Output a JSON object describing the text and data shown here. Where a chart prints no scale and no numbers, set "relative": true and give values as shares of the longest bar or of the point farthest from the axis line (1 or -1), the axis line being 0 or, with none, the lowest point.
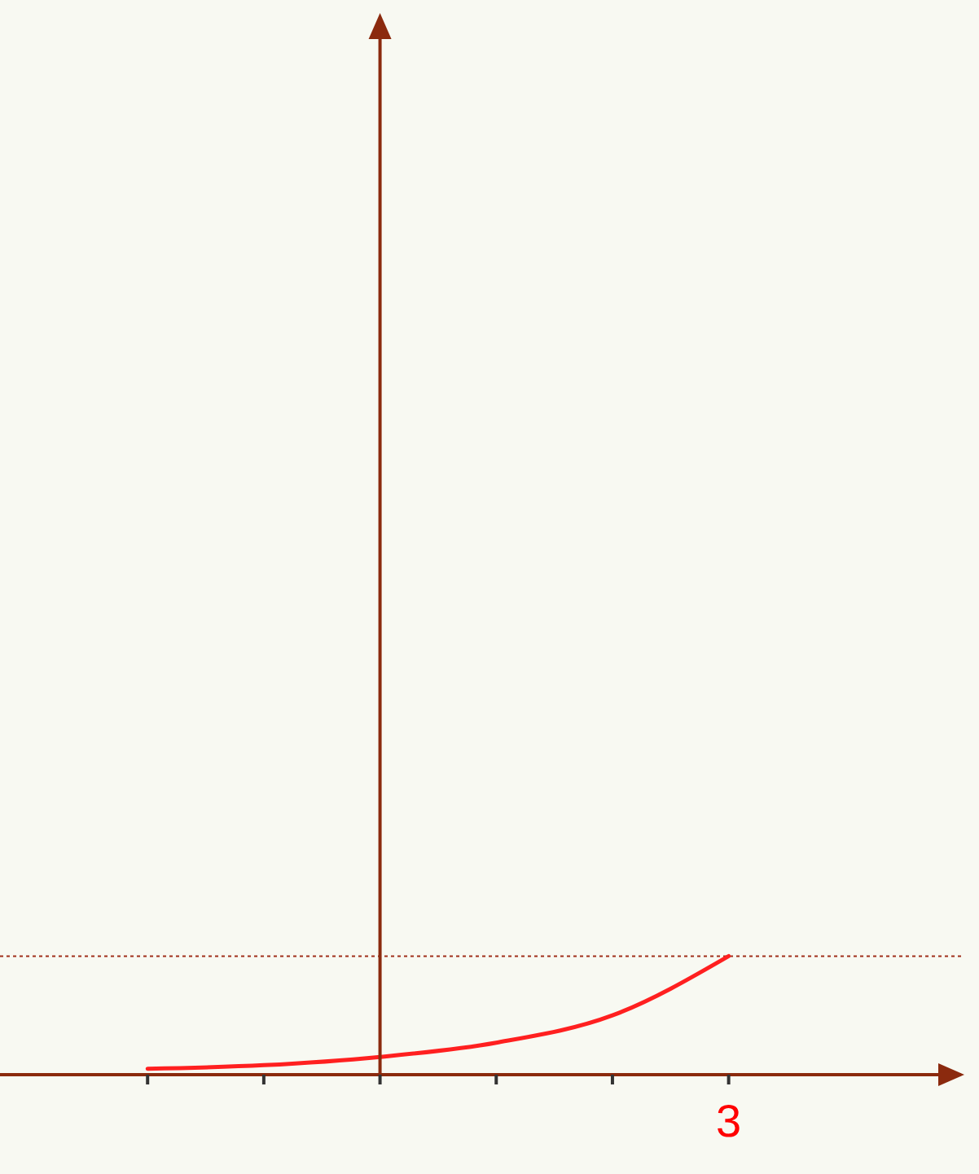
{
  "chart_data": {
    "type": "line",
    "relative": true,
    "categories": [
      null,
      null,
      null,
      null,
      null,
      null
    ],
    "annotations": [
      "3"
    ],
    "series": [
      {
        "color": "#ff2020",
        "values": [
          0.05,
          0.08,
          0.15,
          0.27,
          0.5,
          1
        ]
      }
    ],
    "ref_lines": [
      {
        "axis": "y",
        "value": 1,
        "color": "#a0301a",
        "line_style": "dotted"
      }
    ],
    "marker": "none",
    "line_style": "solid"
  }
}
